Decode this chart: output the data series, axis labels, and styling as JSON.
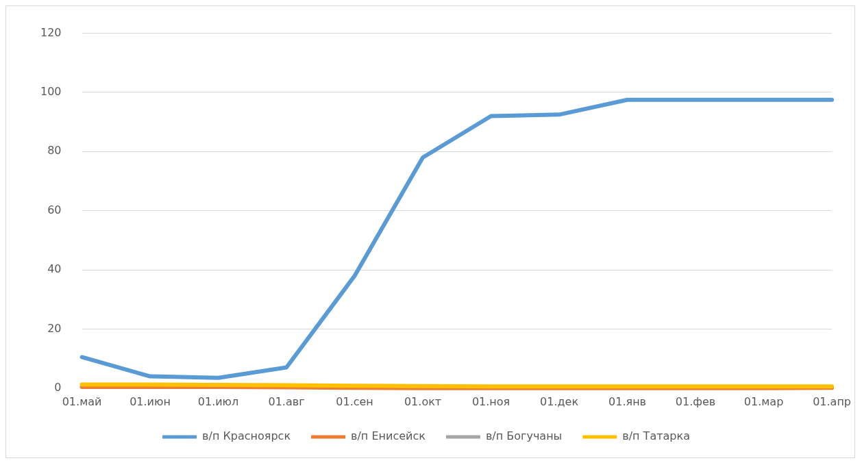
{
  "chart_data": {
    "type": "line",
    "categories": [
      "01.май",
      "01.июн",
      "01.июл",
      "01.авг",
      "01.сен",
      "01.окт",
      "01.ноя",
      "01.дек",
      "01.янв",
      "01.фев",
      "01.мар",
      "01.апр"
    ],
    "series": [
      {
        "name": "в/п Красноярск",
        "color": "#5b9bd5",
        "values": [
          10.5,
          4,
          3.5,
          7,
          38,
          78,
          92,
          92.5,
          97.5,
          97.5,
          97.5,
          97.5
        ]
      },
      {
        "name": "в/п Енисейск",
        "color": "#ed7d31",
        "values": [
          0.4,
          0.4,
          0.4,
          0.3,
          0.1,
          0,
          0,
          0,
          0,
          0,
          0,
          0.1
        ]
      },
      {
        "name": "в/п Богучаны",
        "color": "#a5a5a5",
        "values": [
          null,
          null,
          null,
          null,
          null,
          null,
          null,
          null,
          null,
          null,
          null,
          null
        ]
      },
      {
        "name": "в/п Татарка",
        "color": "#ffc000",
        "values": [
          1.2,
          1.2,
          1.1,
          1,
          0.8,
          0.7,
          0.6,
          0.6,
          0.6,
          0.6,
          0.6,
          0.6
        ]
      }
    ],
    "ylim": [
      0,
      120
    ],
    "yticks": [
      0,
      20,
      40,
      60,
      80,
      100,
      120
    ],
    "grid": "y",
    "legend": "bottom",
    "marker": "none",
    "line_style": "solid"
  }
}
